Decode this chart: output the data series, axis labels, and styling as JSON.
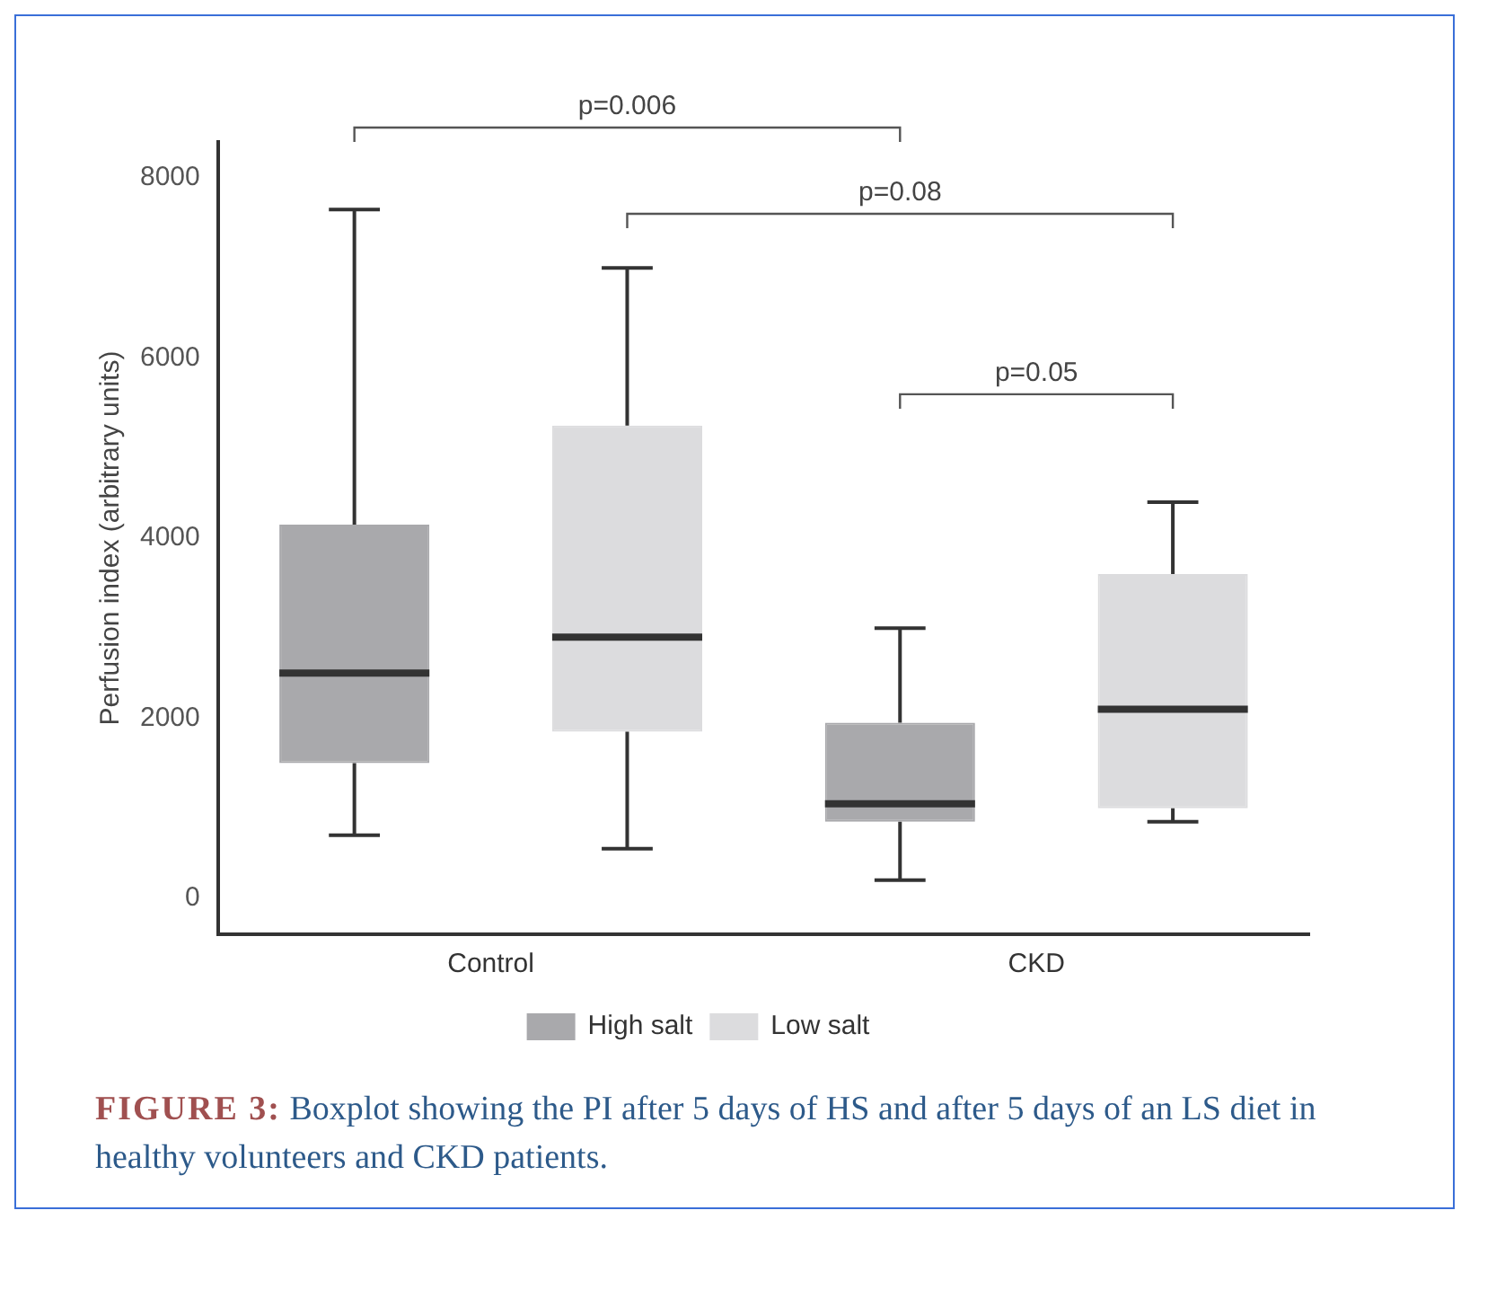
{
  "chart_data": {
    "type": "box",
    "ylabel": "Perfusion index (arbitrary units)",
    "categories": [
      "Control",
      "CKD"
    ],
    "series": [
      {
        "name": "High salt",
        "color": "#a9a9ac",
        "boxes": [
          {
            "low": 700,
            "q1": 1500,
            "median": 2500,
            "q3": 4150,
            "high": 7650
          },
          {
            "low": 200,
            "q1": 850,
            "median": 1050,
            "q3": 1950,
            "high": 3000
          }
        ]
      },
      {
        "name": "Low salt",
        "color": "#dcdcde",
        "boxes": [
          {
            "low": 550,
            "q1": 1850,
            "median": 2900,
            "q3": 5250,
            "high": 7000
          },
          {
            "low": 850,
            "q1": 1000,
            "median": 2100,
            "q3": 3600,
            "high": 4400
          }
        ]
      }
    ],
    "ylim": [
      -400,
      8400
    ],
    "yticks": [
      0,
      2000,
      4000,
      6000,
      8000
    ],
    "grid": false,
    "legend": "bottom",
    "annotations": [
      "p=0.006",
      "p=0.08",
      "p=0.05",
      "FIGURE 3: Boxplot showing the PI after 5 days of HS and after 5 days of an LS diet in healthy volunteers and CKD patients."
    ]
  }
}
